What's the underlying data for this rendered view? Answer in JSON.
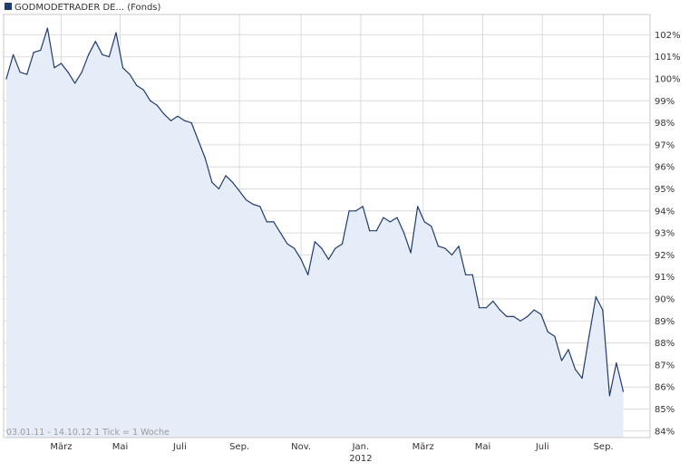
{
  "header": {
    "legend_swatch_color": "#1f3c6e",
    "legend_label": "GODMODETRADER DE... (Fonds)"
  },
  "footer": {
    "range_note": "03.01.11 - 14.10.12   1 Tick = 1 Woche"
  },
  "colors": {
    "line": "#1f3c6e",
    "fill": "#e6edf9",
    "grid": "#dcdcdc",
    "frame": "#c8c8c8",
    "text": "#333333",
    "muted_text": "#999999"
  },
  "chart_data": {
    "type": "area",
    "title": "",
    "xlabel": "",
    "ylabel": "",
    "grid": true,
    "ylim": [
      84,
      103
    ],
    "y_axis_side": "right",
    "y_ticks": [
      84,
      85,
      86,
      87,
      88,
      89,
      90,
      91,
      92,
      93,
      94,
      95,
      96,
      97,
      98,
      99,
      100,
      101,
      102
    ],
    "y_tick_labels": [
      "84%",
      "85%",
      "86%",
      "87%",
      "88%",
      "89%",
      "90%",
      "91%",
      "92%",
      "93%",
      "94%",
      "95%",
      "96%",
      "97%",
      "98%",
      "99%",
      "100%",
      "101%",
      "102%"
    ],
    "x_range_weeks": [
      0,
      93.9
    ],
    "x_ticks": [
      {
        "week": 8,
        "label": "März"
      },
      {
        "week": 16.6,
        "label": "Mai"
      },
      {
        "week": 25.3,
        "label": "Juli"
      },
      {
        "week": 34,
        "label": "Sep."
      },
      {
        "week": 43,
        "label": "Nov."
      },
      {
        "week": 51.7,
        "label": "Jan.",
        "sublabel": "2012"
      },
      {
        "week": 60.8,
        "label": "März"
      },
      {
        "week": 69.5,
        "label": "Mai"
      },
      {
        "week": 78.2,
        "label": "Juli"
      },
      {
        "week": 87.1,
        "label": "Sep."
      }
    ],
    "series": [
      {
        "values": [
          100,
          101.1,
          100.3,
          100.2,
          101.2,
          101.3,
          102.3,
          100.5,
          100.7,
          100.3,
          99.8,
          100.3,
          101.1,
          101.7,
          101.1,
          101,
          102.1,
          100.5,
          100.2,
          99.7,
          99.5,
          99,
          98.8,
          98.4,
          98.1,
          98.3,
          98.1,
          98,
          97.2,
          96.4,
          95.3,
          95,
          95.6,
          95.3,
          94.9,
          94.5,
          94.3,
          94.2,
          93.5,
          93.5,
          93,
          92.5,
          92.3,
          91.8,
          91.1,
          92.6,
          92.3,
          91.8,
          92.3,
          92.5,
          94,
          94,
          94.2,
          93.1,
          93.1,
          93.7,
          93.5,
          93.7,
          93,
          92.1,
          94.2,
          93.5,
          93.3,
          92.4,
          92.3,
          92,
          92.4,
          91.1,
          91.1,
          89.6,
          89.6,
          89.9,
          89.5,
          89.2,
          89.2,
          89,
          89.2,
          89.5,
          89.3,
          88.5,
          88.3,
          87.2,
          87.7,
          86.8,
          86.4,
          88.3,
          90.1,
          89.5,
          85.6,
          87.1,
          85.8
        ]
      }
    ]
  }
}
